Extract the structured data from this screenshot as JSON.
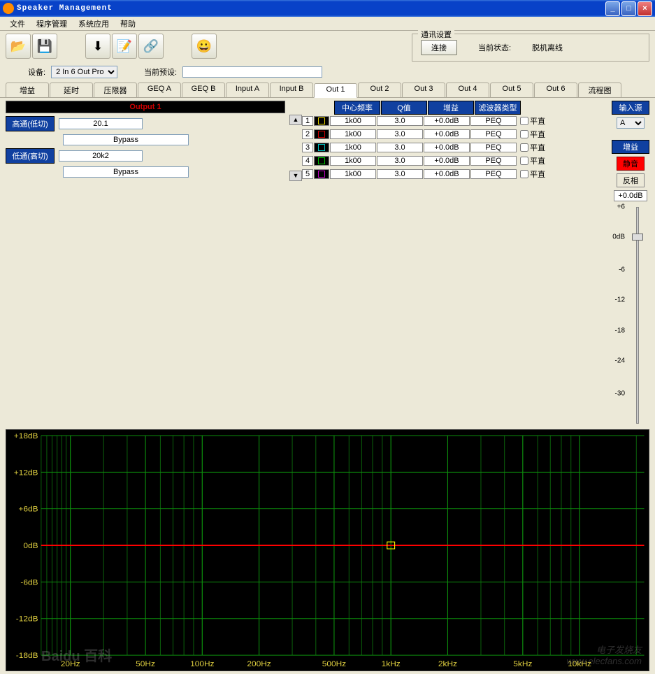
{
  "window": {
    "title": "Speaker Management"
  },
  "menu": [
    "文件",
    "程序管理",
    "系统应用",
    "帮助"
  ],
  "comm": {
    "legend": "通讯设置",
    "connect": "连接",
    "status_label": "当前状态:",
    "status_value": "脱机离线"
  },
  "device": {
    "label": "设备:",
    "options": [
      "2 In 6 Out Pro"
    ],
    "selected": "2 In 6 Out Pro",
    "preset_label": "当前预设:",
    "preset_value": ""
  },
  "tabs": [
    "增益",
    "延时",
    "压限器",
    "GEQ A",
    "GEQ B",
    "Input A",
    "Input B",
    "Out 1",
    "Out 2",
    "Out 3",
    "Out 4",
    "Out 5",
    "Out 6",
    "流程图"
  ],
  "active_tab": 7,
  "output": {
    "title": "Output 1",
    "hp_label": "高通(低切)",
    "hp_freq": "20.1",
    "hp_type": "Bypass",
    "lp_label": "低通(高切)",
    "lp_freq": "20k2",
    "lp_type": "Bypass"
  },
  "peq": {
    "headers": [
      "中心频率",
      "Q值",
      "增益",
      "滤波器类型"
    ],
    "flat_label": "平直",
    "rows": [
      {
        "n": "1",
        "color": "#e0d000",
        "freq": "1k00",
        "q": "3.0",
        "gain": "+0.0dB",
        "type": "PEQ",
        "flat": false
      },
      {
        "n": "2",
        "color": "#d00000",
        "freq": "1k00",
        "q": "3.0",
        "gain": "+0.0dB",
        "type": "PEQ",
        "flat": false
      },
      {
        "n": "3",
        "color": "#00c0c0",
        "freq": "1k00",
        "q": "3.0",
        "gain": "+0.0dB",
        "type": "PEQ",
        "flat": false
      },
      {
        "n": "4",
        "color": "#00c000",
        "freq": "1k00",
        "q": "3.0",
        "gain": "+0.0dB",
        "type": "PEQ",
        "flat": false
      },
      {
        "n": "5",
        "color": "#c000c0",
        "freq": "1k00",
        "q": "3.0",
        "gain": "+0.0dB",
        "type": "PEQ",
        "flat": false
      }
    ]
  },
  "right": {
    "source_label": "输入源",
    "source_options": [
      "A",
      "B"
    ],
    "source_selected": "A",
    "gain_label": "增益",
    "mute": "静音",
    "invert": "反相",
    "gain_value": "+0.0dB"
  },
  "slider": {
    "ticks": [
      {
        "v": "+6",
        "p": 0
      },
      {
        "v": "0dB",
        "p": 14
      },
      {
        "v": "-6",
        "p": 29
      },
      {
        "v": "-12",
        "p": 43
      },
      {
        "v": "-18",
        "p": 57
      },
      {
        "v": "-24",
        "p": 71
      },
      {
        "v": "-30",
        "p": 86
      }
    ],
    "thumb_pos": 14
  },
  "graph": {
    "bg": "#000000",
    "grid_color": "#0a5a0a",
    "grid_major_color": "#0c8c0c",
    "label_color": "#e0d040",
    "line_color": "#ff0000",
    "marker_color": "#ffff00",
    "y_ticks": [
      {
        "v": "+18dB",
        "db": 18
      },
      {
        "v": "+12dB",
        "db": 12
      },
      {
        "v": "+6dB",
        "db": 6
      },
      {
        "v": "0dB",
        "db": 0
      },
      {
        "v": "-6dB",
        "db": -6
      },
      {
        "v": "-12dB",
        "db": -12
      },
      {
        "v": "-18dB",
        "db": -18
      }
    ],
    "y_range": [
      -18,
      18
    ],
    "x_ticks": [
      {
        "v": "20Hz",
        "hz": 20
      },
      {
        "v": "50Hz",
        "hz": 50
      },
      {
        "v": "100Hz",
        "hz": 100
      },
      {
        "v": "200Hz",
        "hz": 200
      },
      {
        "v": "500Hz",
        "hz": 500
      },
      {
        "v": "1kHz",
        "hz": 1000
      },
      {
        "v": "2kHz",
        "hz": 2000
      },
      {
        "v": "5kHz",
        "hz": 5000
      },
      {
        "v": "10kHz",
        "hz": 10000
      }
    ],
    "x_range_hz": [
      14,
      22000
    ],
    "log_minor_hz": [
      14,
      15,
      16,
      17,
      18,
      19,
      20,
      30,
      40,
      50,
      60,
      70,
      80,
      90,
      100,
      200,
      300,
      400,
      500,
      600,
      700,
      800,
      900,
      1000,
      2000,
      3000,
      4000,
      5000,
      6000,
      7000,
      8000,
      9000,
      10000,
      20000
    ],
    "marker_hz": 1000,
    "marker_db": 0
  },
  "watermarks": {
    "left": "Baidu 百科",
    "right": "电子发烧友\nwww.elecfans.com"
  }
}
